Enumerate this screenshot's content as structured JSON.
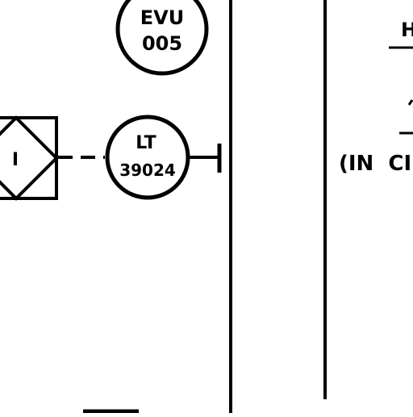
{
  "instruments": [
    {
      "line1": "EVU",
      "line2": "005"
    },
    {
      "line1": "LT",
      "line2": "39024"
    }
  ],
  "interlock_symbol": {
    "label": "I"
  },
  "right_text": {
    "line_a": "H",
    "line_b": "(IN  CI"
  }
}
